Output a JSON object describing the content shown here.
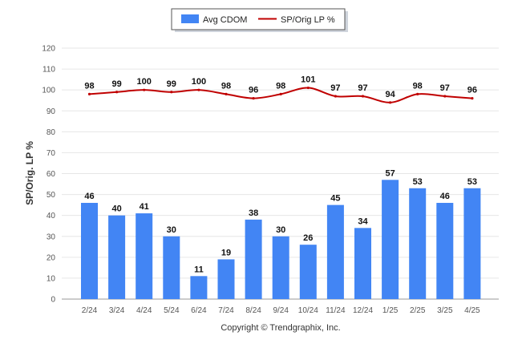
{
  "chart_data": {
    "type": "bar",
    "title": "",
    "xlabel": "",
    "ylabel": "SP/Orig. LP %",
    "ylim": [
      0,
      120
    ],
    "yticks": [
      0,
      10,
      20,
      30,
      40,
      50,
      60,
      70,
      80,
      90,
      100,
      110,
      120
    ],
    "grid": true,
    "legend_position": "top-center",
    "categories": [
      "2/24",
      "3/24",
      "4/24",
      "5/24",
      "6/24",
      "7/24",
      "8/24",
      "9/24",
      "10/24",
      "11/24",
      "12/24",
      "1/25",
      "2/25",
      "3/25",
      "4/25"
    ],
    "series": [
      {
        "name": "Avg CDOM",
        "type": "bar",
        "color": "#4285f4",
        "values": [
          46,
          40,
          41,
          30,
          11,
          19,
          38,
          30,
          26,
          45,
          34,
          57,
          53,
          46,
          53
        ]
      },
      {
        "name": "SP/Orig LP %",
        "type": "line",
        "color": "#c00000",
        "values": [
          98,
          99,
          100,
          99,
          100,
          98,
          96,
          98,
          101,
          97,
          97,
          94,
          98,
          97,
          96
        ]
      }
    ]
  },
  "footer": {
    "copyright": "Copyright © Trendgraphix, Inc."
  }
}
